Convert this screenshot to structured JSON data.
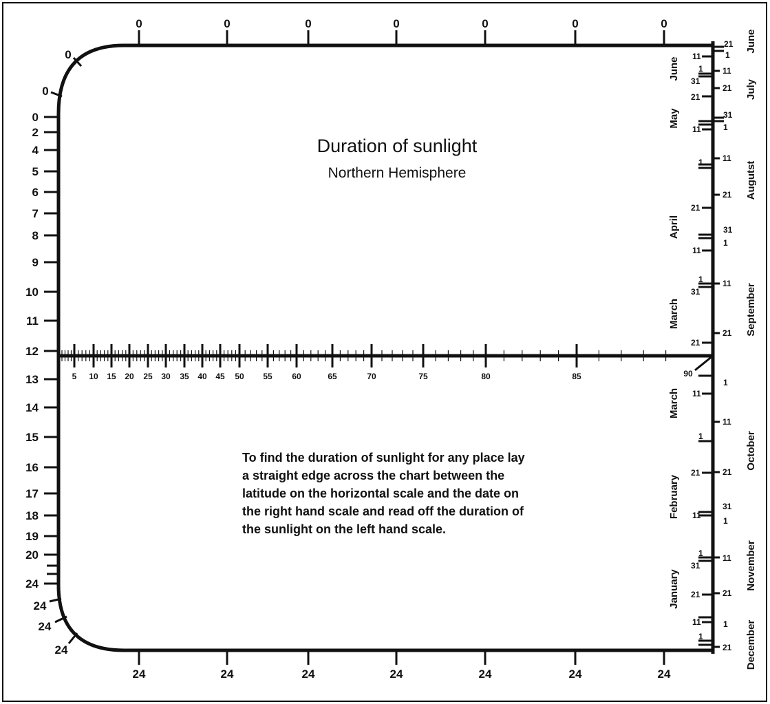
{
  "title": "Duration of sunlight",
  "subtitle": "Northern Hemisphere",
  "instructions": [
    "To find the duration of sunlight for any place lay",
    "a straight edge across the chart between the",
    "latitude on the horizontal scale and the date on",
    "the right hand scale and read off the duration of",
    "the sunlight on the left hand scale."
  ],
  "duration_scale_top": [
    "0",
    "0",
    "0",
    "0",
    "0",
    "0",
    "0"
  ],
  "duration_scale_bottom": [
    "24",
    "24",
    "24",
    "24",
    "24",
    "24",
    "24"
  ],
  "duration_scale_arc_top": [
    "0",
    "0"
  ],
  "duration_scale_arc_bottom": [
    "24",
    "24",
    "24"
  ],
  "duration_scale_left": [
    "0",
    "2",
    "4",
    "5",
    "6",
    "7",
    "8",
    "9",
    "10",
    "11",
    "12",
    "13",
    "14",
    "15",
    "16",
    "17",
    "18",
    "19",
    "20",
    "24"
  ],
  "latitude_scale": [
    "5",
    "10",
    "15",
    "20",
    "25",
    "30",
    "35",
    "40",
    "45",
    "50",
    "55",
    "60",
    "65",
    "70",
    "75",
    "80",
    "85",
    "90"
  ],
  "dates_left_upper": [
    "11",
    "1",
    "31",
    "21",
    "31",
    "1",
    "11",
    "1",
    "21",
    "31",
    "1",
    "11",
    "1",
    "31",
    "21"
  ],
  "dates_right_upper": [
    "21",
    "1",
    "11",
    "21",
    "1",
    "11",
    "21",
    "11",
    "21"
  ],
  "dates_left_lower": [
    "11",
    "1",
    "21",
    "31",
    "11",
    "1",
    "31",
    "21",
    "11",
    "1"
  ],
  "dates_right_lower": [
    "1",
    "11",
    "21",
    "1",
    "11",
    "21",
    "1",
    "21"
  ],
  "months_left": [
    "June",
    "May",
    "April",
    "March",
    "March",
    "February",
    "January"
  ],
  "months_right": [
    "June",
    "July",
    "Augutst",
    "September",
    "October",
    "November",
    "December"
  ]
}
